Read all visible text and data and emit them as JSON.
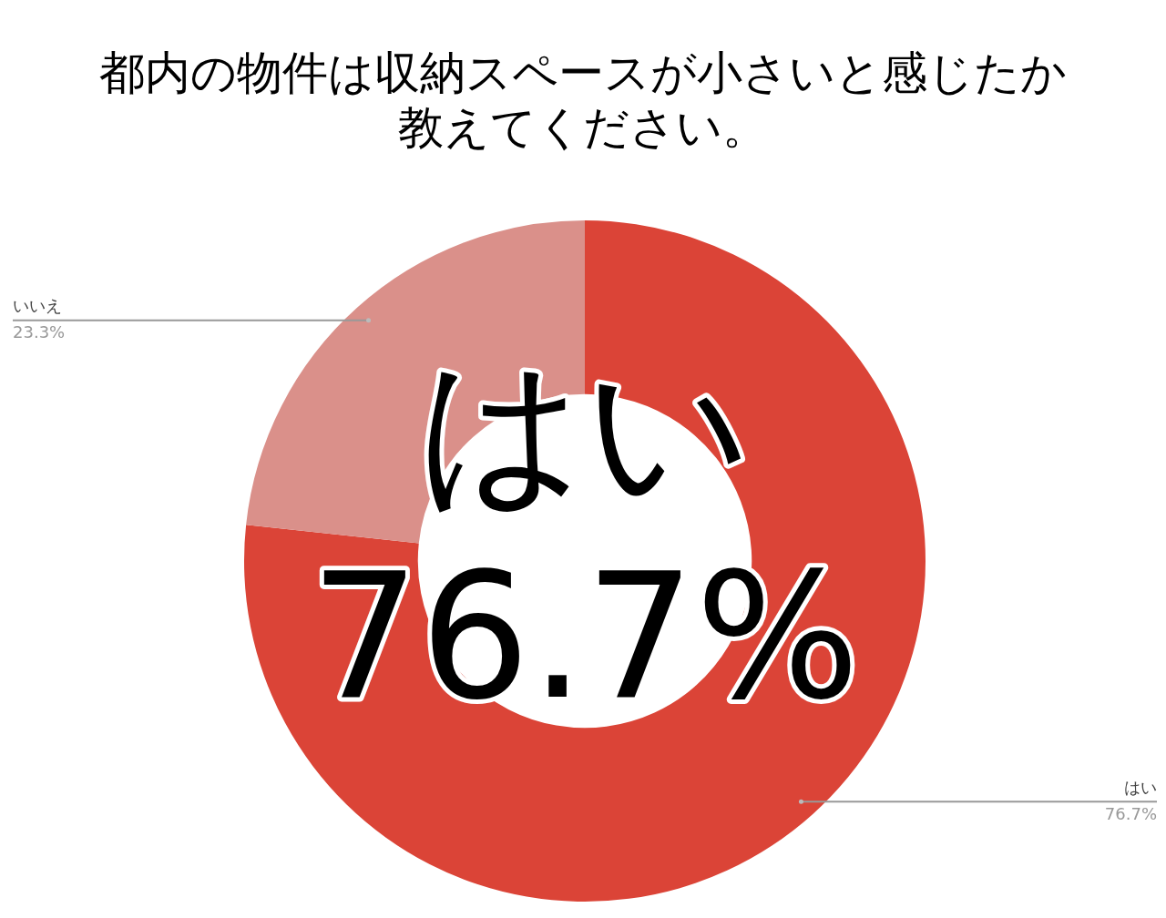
{
  "chart_data": {
    "type": "donut",
    "title": "都内の物件は収納スペースが小さいと感じたか教えてください。",
    "categories": [
      "はい",
      "いいえ"
    ],
    "values": [
      76.7,
      23.3
    ],
    "colors": [
      "#db4437",
      "#da908a"
    ],
    "value_labels": [
      "76.7%",
      "23.3%"
    ],
    "legend": false,
    "annotations": [
      "はい",
      "76.7%"
    ]
  }
}
